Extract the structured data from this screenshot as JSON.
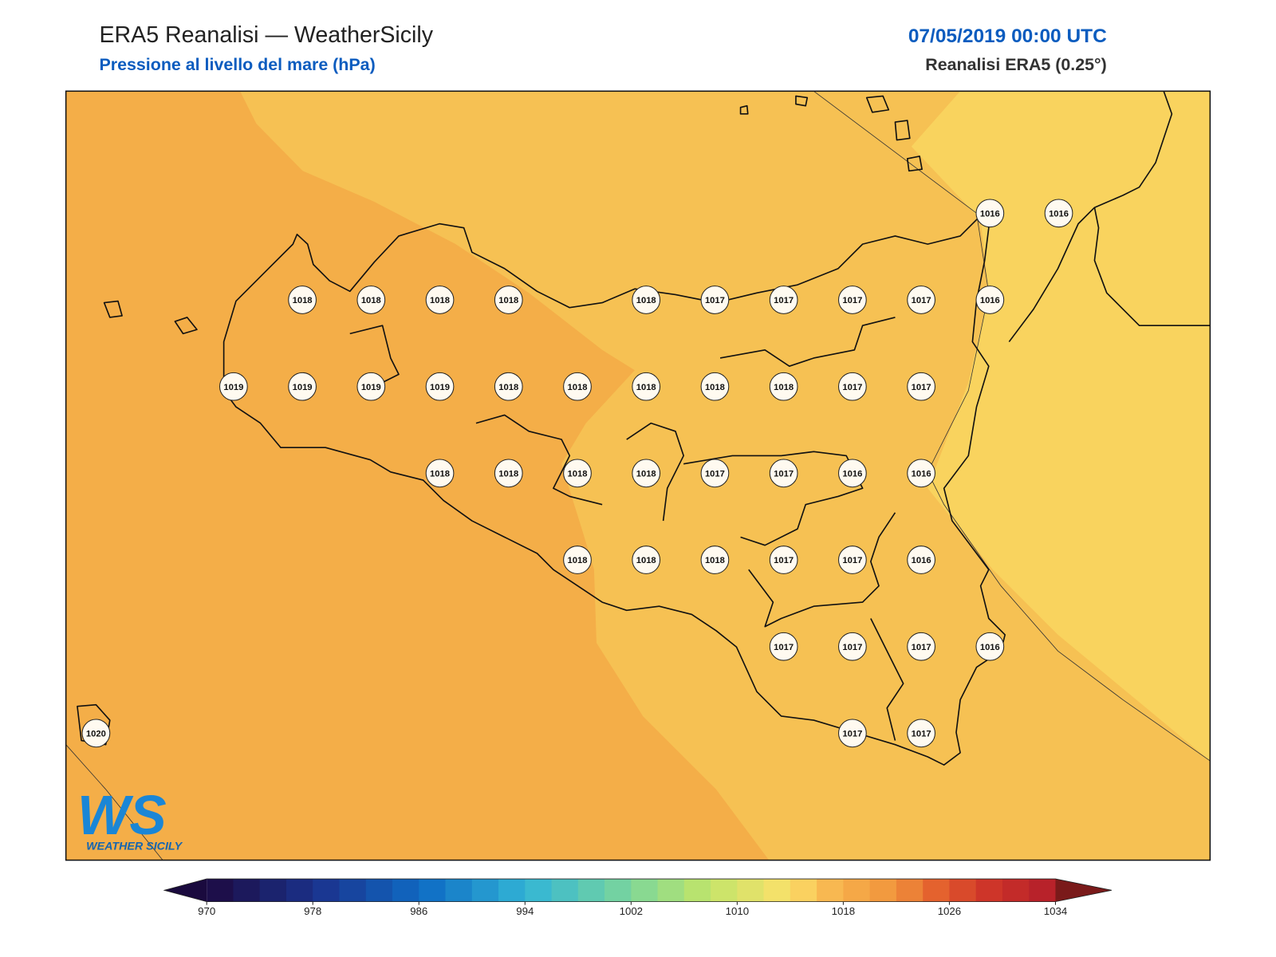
{
  "header": {
    "title": "ERA5 Reanalisi — WeatherSicily",
    "subtitle": "Pressione al livello del mare (hPa)",
    "date": "07/05/2019 00:00 UTC",
    "source": "Reanalisi ERA5 (0.25°)"
  },
  "stations": [
    [
      null,
      null,
      null,
      null,
      null,
      null,
      null,
      null,
      null,
      null,
      null,
      null,
      null,
      1016,
      1016
    ],
    [
      null,
      null,
      null,
      1018,
      1018,
      1018,
      1018,
      null,
      1018,
      1017,
      1017,
      1017,
      1017,
      1016,
      null
    ],
    [
      null,
      null,
      1019,
      1019,
      1019,
      1019,
      1018,
      1018,
      1018,
      1018,
      1018,
      1017,
      1017,
      null,
      null
    ],
    [
      null,
      null,
      null,
      null,
      null,
      1018,
      1018,
      1018,
      1018,
      1017,
      1017,
      1016,
      1016,
      null,
      null
    ],
    [
      null,
      null,
      null,
      null,
      null,
      null,
      null,
      1018,
      1018,
      1018,
      1017,
      1017,
      1016,
      null,
      null
    ],
    [
      null,
      null,
      null,
      null,
      null,
      null,
      null,
      null,
      null,
      null,
      1017,
      1017,
      1017,
      1016,
      null
    ],
    [
      1020,
      null,
      null,
      null,
      null,
      null,
      null,
      null,
      null,
      null,
      null,
      1017,
      1017,
      null,
      null
    ]
  ],
  "colorbar": {
    "ticks": [
      970,
      978,
      986,
      994,
      1002,
      1010,
      1018,
      1026,
      1034
    ]
  },
  "logo": {
    "mark": "WS",
    "text": "WEATHER SICILY"
  }
}
